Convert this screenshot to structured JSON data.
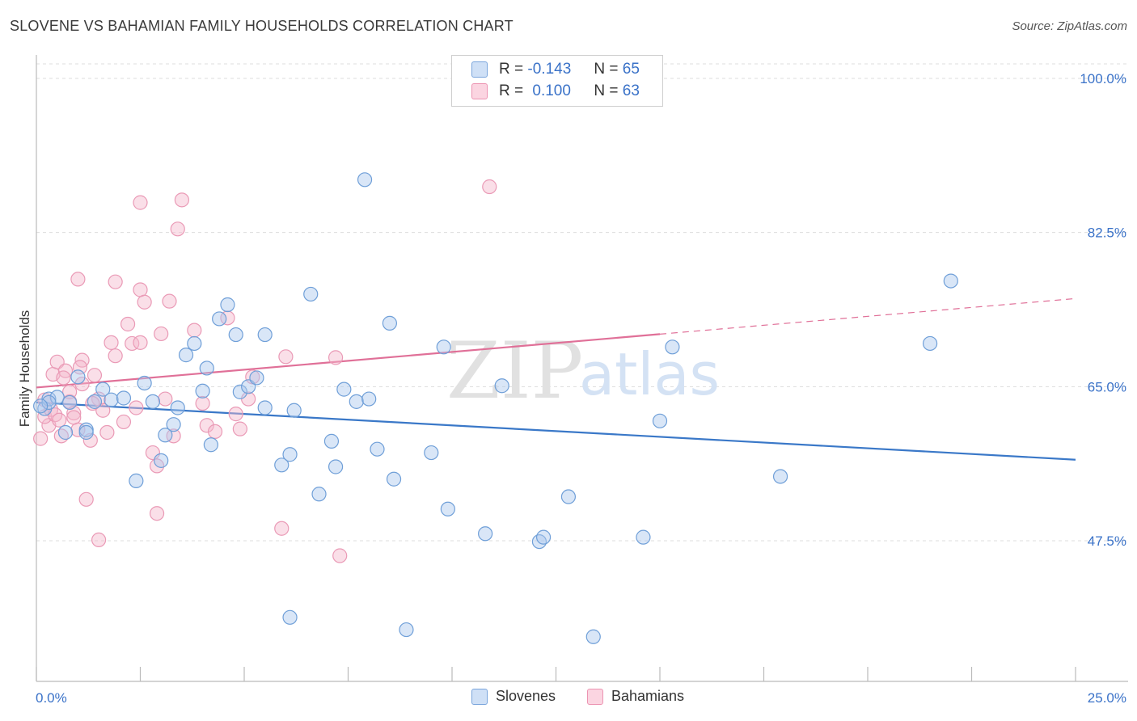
{
  "title": "SLOVENE VS BAHAMIAN FAMILY HOUSEHOLDS CORRELATION CHART",
  "source": "Source: ZipAtlas.com",
  "legend": {
    "rows": [
      {
        "r_label": "R =",
        "r_value": "-0.143",
        "n_label": "N =",
        "n_value": "65",
        "color": "#aac8ee"
      },
      {
        "r_label": "R =",
        "r_value": "0.100",
        "n_label": "N =",
        "n_value": "63",
        "color": "#f5b8cc"
      }
    ]
  },
  "bottom_legend": [
    "Slovenes",
    "Bahamians"
  ],
  "watermark": {
    "zip": "ZIP",
    "atlas": "atlas"
  },
  "chart_data": {
    "type": "scatter",
    "title": "SLOVENE VS BAHAMIAN FAMILY HOUSEHOLDS CORRELATION CHART",
    "xlabel": "",
    "ylabel": "Family Households",
    "xlim": [
      0,
      25
    ],
    "ylim": [
      32,
      102
    ],
    "x_tick_labels": [
      "0.0%",
      "25.0%"
    ],
    "y_ticks": [
      47.5,
      65.0,
      82.5,
      100.0
    ],
    "y_tick_labels": [
      "47.5%",
      "65.0%",
      "82.5%",
      "100.0%"
    ],
    "colors": {
      "slovenes": "#3a78c8",
      "bahamians": "#e07098",
      "slovenes_fill": "#aac8ee",
      "bahamians_fill": "#f5b8cc"
    },
    "series": [
      {
        "name": "Slovenes",
        "trend": {
          "x0": 0,
          "y0": 63.2,
          "x1": 25,
          "y1": 56.7,
          "dashed_from": null
        },
        "points": [
          [
            0.2,
            62.5
          ],
          [
            0.3,
            63.6
          ],
          [
            0.5,
            63.8
          ],
          [
            0.3,
            63.2
          ],
          [
            0.7,
            59.8
          ],
          [
            0.8,
            63.2
          ],
          [
            1.0,
            66.1
          ],
          [
            1.2,
            60.1
          ],
          [
            1.2,
            59.8
          ],
          [
            1.4,
            63.3
          ],
          [
            1.6,
            64.7
          ],
          [
            1.8,
            63.5
          ],
          [
            2.1,
            63.7
          ],
          [
            2.4,
            54.3
          ],
          [
            2.6,
            65.4
          ],
          [
            2.8,
            63.3
          ],
          [
            3.0,
            56.6
          ],
          [
            3.1,
            59.5
          ],
          [
            3.3,
            60.7
          ],
          [
            3.4,
            62.6
          ],
          [
            3.6,
            68.6
          ],
          [
            3.8,
            69.9
          ],
          [
            4.0,
            64.5
          ],
          [
            4.1,
            67.1
          ],
          [
            4.2,
            58.4
          ],
          [
            4.4,
            72.7
          ],
          [
            4.6,
            74.3
          ],
          [
            4.8,
            70.9
          ],
          [
            4.9,
            64.4
          ],
          [
            5.1,
            65.0
          ],
          [
            5.3,
            66.0
          ],
          [
            5.5,
            70.9
          ],
          [
            5.5,
            62.6
          ],
          [
            5.9,
            56.1
          ],
          [
            6.1,
            57.3
          ],
          [
            6.2,
            62.3
          ],
          [
            6.1,
            38.8
          ],
          [
            6.6,
            75.5
          ],
          [
            6.8,
            52.8
          ],
          [
            7.1,
            58.8
          ],
          [
            7.2,
            55.9
          ],
          [
            7.4,
            64.7
          ],
          [
            7.7,
            63.3
          ],
          [
            7.9,
            88.5
          ],
          [
            8.0,
            63.6
          ],
          [
            8.2,
            57.9
          ],
          [
            8.5,
            72.2
          ],
          [
            8.6,
            54.5
          ],
          [
            8.9,
            37.4
          ],
          [
            9.5,
            57.5
          ],
          [
            9.8,
            69.5
          ],
          [
            9.9,
            51.1
          ],
          [
            10.8,
            48.3
          ],
          [
            11.2,
            65.1
          ],
          [
            12.1,
            47.4
          ],
          [
            12.2,
            47.9
          ],
          [
            12.8,
            52.5
          ],
          [
            13.4,
            36.6
          ],
          [
            14.6,
            47.9
          ],
          [
            15.0,
            61.1
          ],
          [
            15.3,
            69.5
          ],
          [
            17.9,
            54.8
          ],
          [
            21.5,
            69.9
          ],
          [
            22.0,
            77.0
          ],
          [
            0.1,
            62.8
          ]
        ]
      },
      {
        "name": "Bahamians",
        "trend": {
          "x0": 0,
          "y0": 64.9,
          "x1": 25,
          "y1": 75.0,
          "dashed_from": 15.0
        },
        "points": [
          [
            0.1,
            59.1
          ],
          [
            0.2,
            63.5
          ],
          [
            0.3,
            60.6
          ],
          [
            0.4,
            66.4
          ],
          [
            0.5,
            67.8
          ],
          [
            0.6,
            59.4
          ],
          [
            0.7,
            66.8
          ],
          [
            0.8,
            63.3
          ],
          [
            0.8,
            64.4
          ],
          [
            0.9,
            62.0
          ],
          [
            1.0,
            60.1
          ],
          [
            1.0,
            77.2
          ],
          [
            1.1,
            68.0
          ],
          [
            1.1,
            65.3
          ],
          [
            1.2,
            52.2
          ],
          [
            1.3,
            58.9
          ],
          [
            1.4,
            66.3
          ],
          [
            1.5,
            47.6
          ],
          [
            1.5,
            63.6
          ],
          [
            1.6,
            62.3
          ],
          [
            1.7,
            59.8
          ],
          [
            1.8,
            70.0
          ],
          [
            1.9,
            76.9
          ],
          [
            1.9,
            68.5
          ],
          [
            2.1,
            61.0
          ],
          [
            2.2,
            72.1
          ],
          [
            2.3,
            69.9
          ],
          [
            2.4,
            62.6
          ],
          [
            2.5,
            85.9
          ],
          [
            2.5,
            70.0
          ],
          [
            2.5,
            76.0
          ],
          [
            2.6,
            74.6
          ],
          [
            2.8,
            57.5
          ],
          [
            2.9,
            56.0
          ],
          [
            2.9,
            50.6
          ],
          [
            3.0,
            71.0
          ],
          [
            3.1,
            63.6
          ],
          [
            3.2,
            74.7
          ],
          [
            3.3,
            59.4
          ],
          [
            3.4,
            82.9
          ],
          [
            3.5,
            86.2
          ],
          [
            3.8,
            71.4
          ],
          [
            4.0,
            63.1
          ],
          [
            4.1,
            60.6
          ],
          [
            4.3,
            59.9
          ],
          [
            4.6,
            72.8
          ],
          [
            4.8,
            61.9
          ],
          [
            4.9,
            60.2
          ],
          [
            5.1,
            63.6
          ],
          [
            5.2,
            66.1
          ],
          [
            5.9,
            48.9
          ],
          [
            6.0,
            68.4
          ],
          [
            7.2,
            68.3
          ],
          [
            7.3,
            45.8
          ],
          [
            10.9,
            87.7
          ],
          [
            0.2,
            61.6
          ],
          [
            0.35,
            62.4
          ],
          [
            0.45,
            61.8
          ],
          [
            0.55,
            61.2
          ],
          [
            0.65,
            66.0
          ],
          [
            0.9,
            61.5
          ],
          [
            1.05,
            67.2
          ],
          [
            1.35,
            63.1
          ]
        ]
      }
    ]
  }
}
